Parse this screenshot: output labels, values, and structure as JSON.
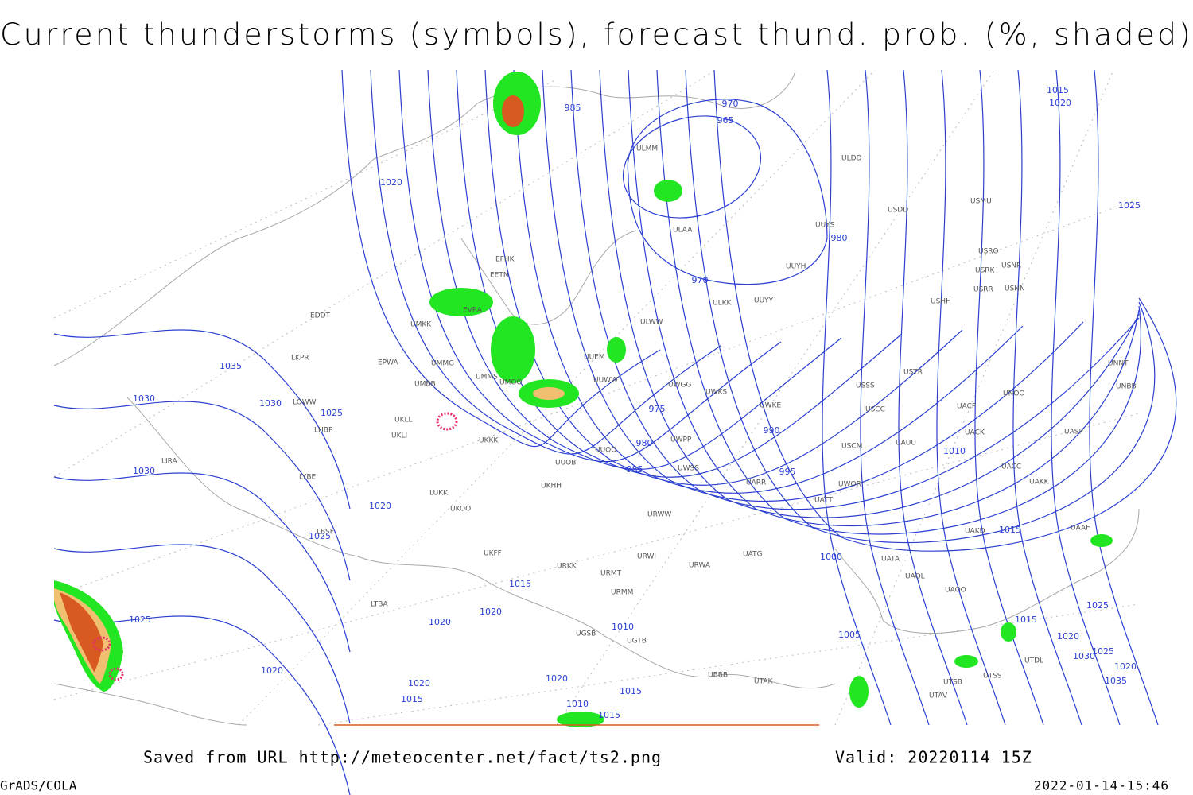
{
  "header": {
    "title": "Current thunderstorms (symbols), forecast thund. prob. (%, shaded)"
  },
  "map": {
    "isobar_labels": [
      "985",
      "970",
      "965",
      "1020",
      "980",
      "970",
      "1035",
      "1030",
      "1030",
      "1025",
      "975",
      "990",
      "980",
      "985",
      "995",
      "1030",
      "1020",
      "1025",
      "1015",
      "1000",
      "1010",
      "1015",
      "1025",
      "1020",
      "1020",
      "1010",
      "1005",
      "1015",
      "1025",
      "1020",
      "1025",
      "1030",
      "1020",
      "1035",
      "1020",
      "1020",
      "1020",
      "1015",
      "1015",
      "1010",
      "1015",
      "1015",
      "1020",
      "1025"
    ],
    "stations": [
      "ULMM",
      "ULAA",
      "ULDD",
      "USDD",
      "USMU",
      "UUYS",
      "UUYH",
      "ULKK",
      "UUYY",
      "ULWW",
      "UUEM",
      "UUWW",
      "UWGG",
      "UWKS",
      "UWKE",
      "UWPP",
      "UWSS",
      "UARR",
      "URWW",
      "UUOO",
      "UUOB",
      "EFHK",
      "EETN",
      "EVRA",
      "UMKK",
      "UMMG",
      "UMMS",
      "UMOO",
      "UMBB",
      "UKLL",
      "UKLI",
      "UKKK",
      "EPWA",
      "EDDT",
      "LKPR",
      "LOWW",
      "LHBP",
      "LIRA",
      "LYBE",
      "LBSF",
      "LUKK",
      "UKOO",
      "UKHH",
      "UKFF",
      "URKK",
      "URMT",
      "URMM",
      "URWI",
      "URWA",
      "UATG",
      "UATT",
      "UWOR",
      "USSS",
      "USTR",
      "USCC",
      "USCM",
      "UAUU",
      "UACK",
      "UACP",
      "UACC",
      "UAKK",
      "UASP",
      "UNOO",
      "UNBB",
      "UNNT",
      "USHH",
      "USRR",
      "USNN",
      "USRK",
      "USNR",
      "USRO",
      "UATA",
      "UAOL",
      "UAOO",
      "UAKD",
      "UAAH",
      "LTBA",
      "UGSB",
      "UGTB",
      "UBBB",
      "UTAK",
      "UTSB",
      "UTSS",
      "UTAV",
      "UTDL"
    ]
  },
  "footer": {
    "source": "Saved from URL http://meteocenter.net/fact/ts2.png",
    "valid": "Valid: 20220114 15Z",
    "software": "GrADS/COLA",
    "timestamp": "2022-01-14-15:46"
  }
}
